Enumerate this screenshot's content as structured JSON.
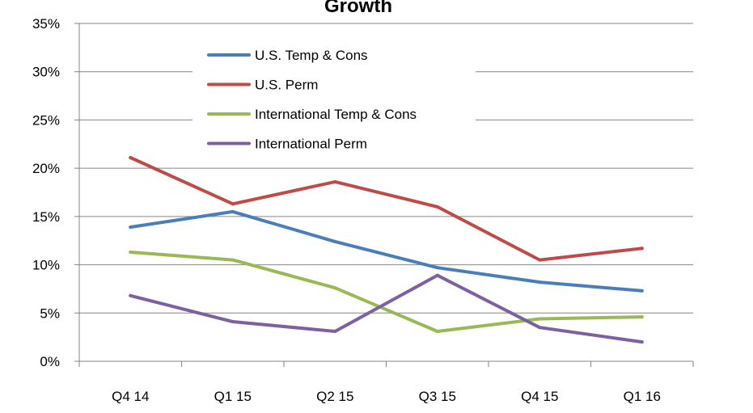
{
  "chart_data": {
    "type": "line",
    "title": "Growth",
    "categories": [
      "Q4 14",
      "Q1 15",
      "Q2 15",
      "Q3 15",
      "Q4 15",
      "Q1 16"
    ],
    "y_ticks": [
      "0%",
      "5%",
      "10%",
      "15%",
      "20%",
      "25%",
      "30%",
      "35%"
    ],
    "ylim": [
      0,
      35
    ],
    "y_unit": "%",
    "grid": true,
    "legend_position": "top-left",
    "series": [
      {
        "name": "U.S. Temp & Cons",
        "color": "#4a7ebb",
        "values": [
          13.9,
          15.5,
          12.4,
          9.7,
          8.2,
          7.3
        ]
      },
      {
        "name": "U.S. Perm",
        "color": "#be4b48",
        "values": [
          21.1,
          16.3,
          18.6,
          16.0,
          10.5,
          11.7
        ]
      },
      {
        "name": "International Temp & Cons",
        "color": "#98b954",
        "values": [
          11.3,
          10.5,
          7.6,
          3.1,
          4.4,
          4.6
        ]
      },
      {
        "name": "International Perm",
        "color": "#7d60a0",
        "values": [
          6.8,
          4.1,
          3.1,
          8.9,
          3.5,
          2.0
        ]
      }
    ]
  }
}
